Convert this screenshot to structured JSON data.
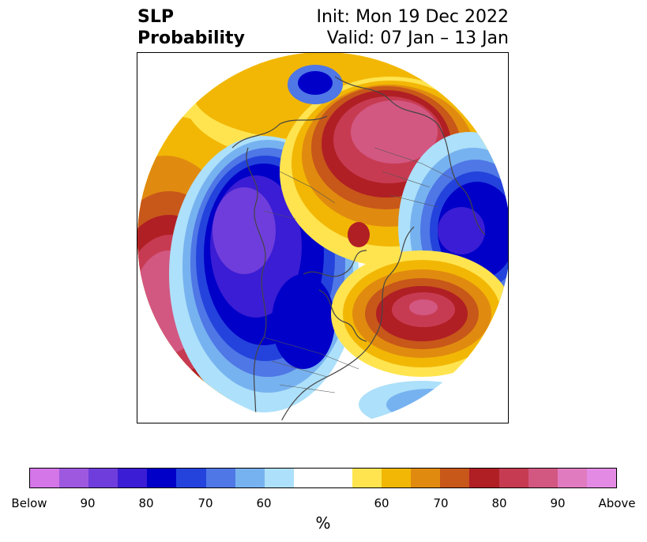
{
  "title": {
    "left_line1": "SLP",
    "left_line2": "Probability",
    "right_line1": "Init: Mon 19 Dec 2022",
    "right_line2": "Valid: 07 Jan – 13 Jan"
  },
  "legend": {
    "unit": "%",
    "colors": {
      "below": [
        "#d476e8",
        "#9e58e0",
        "#6f3ddb",
        "#3a1dd4",
        "#0000c8",
        "#2443dc",
        "#4f77e6",
        "#77b2f0",
        "#ade0fa"
      ],
      "neutral": "#ffffff",
      "above": [
        "#ffe44f",
        "#f2b705",
        "#e08b0f",
        "#c8571a",
        "#b01f24",
        "#c73b52",
        "#d25882",
        "#e07bc0",
        "#e28ae4"
      ]
    },
    "tick_labels": [
      "Below",
      "90",
      "80",
      "70",
      "60",
      "60",
      "70",
      "80",
      "90",
      "Above"
    ]
  }
}
